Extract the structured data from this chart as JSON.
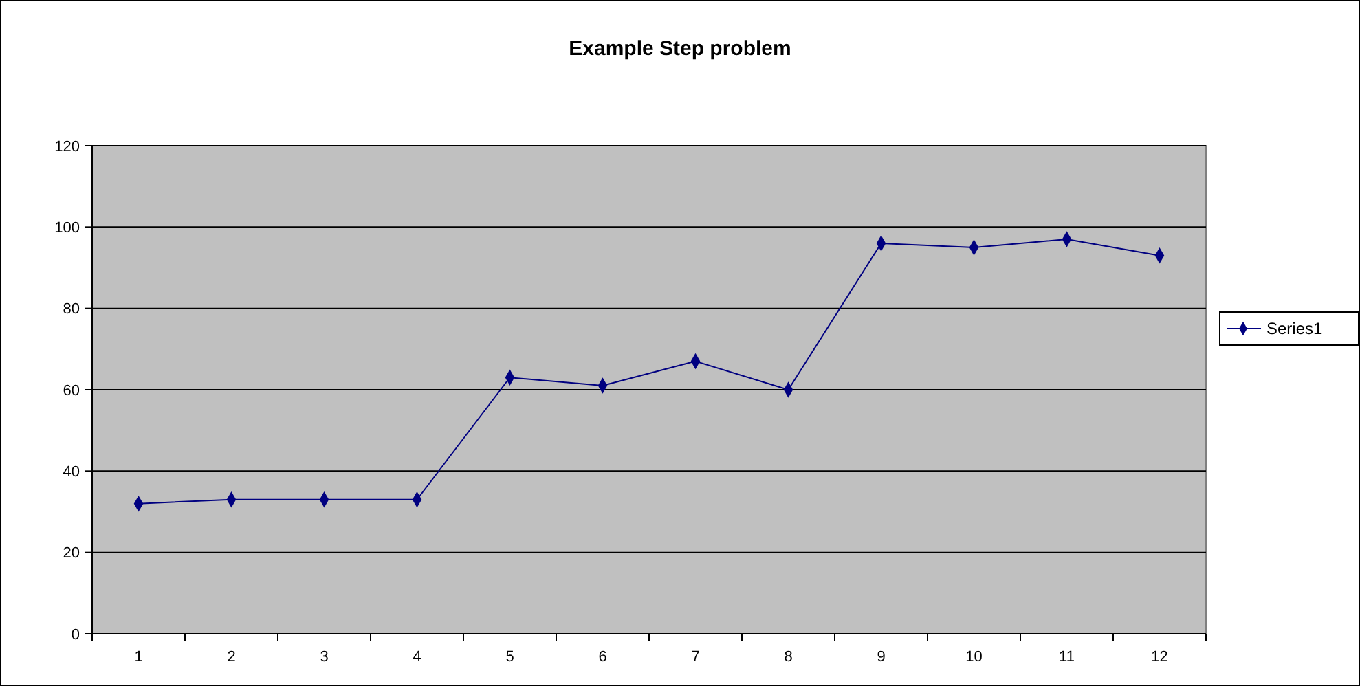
{
  "chart_data": {
    "type": "line",
    "title": "Example Step problem",
    "categories": [
      "1",
      "2",
      "3",
      "4",
      "5",
      "6",
      "7",
      "8",
      "9",
      "10",
      "11",
      "12"
    ],
    "series": [
      {
        "name": "Series1",
        "color": "#000080",
        "values": [
          32,
          33,
          33,
          33,
          63,
          61,
          67,
          60,
          96,
          95,
          97,
          93
        ]
      }
    ],
    "ylim": [
      0,
      120
    ],
    "yticks": [
      0,
      20,
      40,
      60,
      80,
      100,
      120
    ],
    "grid": "y",
    "legend": "right",
    "marker": "diamond",
    "line_style": "solid"
  }
}
